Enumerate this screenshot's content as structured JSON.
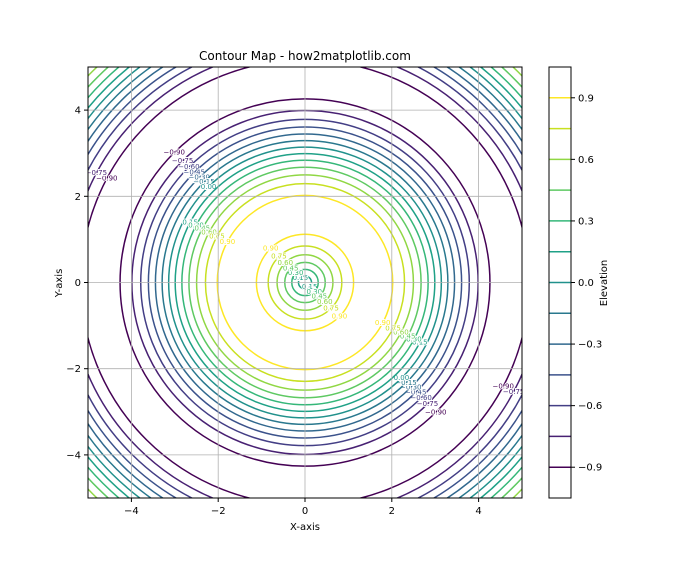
{
  "chart_data": {
    "type": "contour",
    "title": "Contour Map - how2matplotlib.com",
    "xlabel": "X-axis",
    "ylabel": "Y-axis",
    "colorbar_label": "Elevation",
    "xlim": [
      -5,
      5
    ],
    "ylim": [
      -5,
      5
    ],
    "xticks": [
      {
        "value": -4,
        "label": "−4"
      },
      {
        "value": -2,
        "label": "−2"
      },
      0,
      2,
      4
    ],
    "yticks": [
      {
        "value": -4,
        "label": "−4"
      },
      {
        "value": -2,
        "label": "−2"
      },
      0,
      2,
      4
    ],
    "grid": true,
    "levels": [
      -0.9,
      -0.75,
      -0.6,
      -0.45,
      -0.3,
      -0.15,
      0,
      0.15,
      0.3,
      0.45,
      0.6,
      0.75,
      0.9
    ],
    "level_labels": [
      "−0.90",
      "−0.75",
      "−0.60",
      "−0.45",
      "−0.30",
      "−0.15",
      "0.00",
      "0.15",
      "0.30",
      "0.45",
      "0.60",
      "0.75",
      "0.90"
    ],
    "colors": [
      "#440154",
      "#482173",
      "#433e85",
      "#3b528b",
      "#31688e",
      "#29788e",
      "#21918c",
      "#1fa187",
      "#35b779",
      "#5ec962",
      "#90d743",
      "#c8e020",
      "#fde725"
    ],
    "colorbar_lim": [
      -1.05,
      1.05
    ],
    "colorbar_ticks": [
      {
        "value": -0.9,
        "label": "−0.9"
      },
      {
        "value": -0.6,
        "label": "−0.6"
      },
      {
        "value": -0.3,
        "label": "−0.3"
      },
      {
        "value": 0,
        "label": "0.0"
      },
      0.3,
      0.6,
      0.9
    ]
  }
}
